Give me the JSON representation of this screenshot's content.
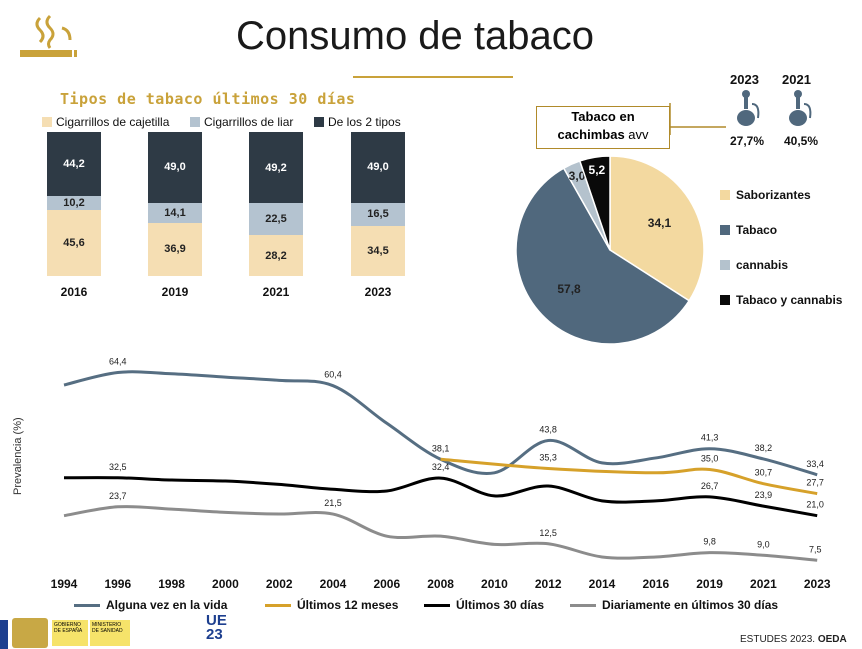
{
  "title": "Consumo de tabaco",
  "subtitle": "Tipos de tabaco últimos 30 días",
  "colors": {
    "gold": "#c9a23a",
    "cajetilla": "#f5deb3",
    "liar": "#b4c3d0",
    "dos": "#2e3a45",
    "alguna": "#566e82",
    "ult12": "#d6a12a",
    "ult30": "#000000",
    "diario": "#8c8c8c",
    "saborizantes": "#f3d9a0",
    "tabaco": "#50687d",
    "cannabis": "#b4c2cd",
    "tabaco_cannabis": "#0a0a0a"
  },
  "chart_data": [
    {
      "type": "bar",
      "title": "Tipos de tabaco últimos 30 días",
      "categories": [
        "2016",
        "2019",
        "2021",
        "2023"
      ],
      "series": [
        {
          "name": "Cigarrillos de cajetilla",
          "values": [
            45.6,
            36.9,
            28.2,
            34.5
          ]
        },
        {
          "name": "Cigarrillos de liar",
          "values": [
            10.2,
            14.1,
            22.5,
            16.5
          ]
        },
        {
          "name": "De los 2 tipos",
          "values": [
            44.2,
            49.0,
            49.2,
            49.0
          ]
        }
      ],
      "labels": {
        "cajetilla": [
          "45,6",
          "36,9",
          "28,2",
          "34,5"
        ],
        "liar": [
          "10,2",
          "14,1",
          "22,5",
          "16,5"
        ],
        "dos": [
          "44,2",
          "49,0",
          "49,2",
          "49,0"
        ]
      },
      "stacked": true
    },
    {
      "type": "pie",
      "title": "Tabaco en cachimbas avv",
      "title_line1": "Tabaco en",
      "title_line2": "cachimbas",
      "title_suffix": "avv",
      "categories": [
        "Saborizantes",
        "Tabaco",
        "cannabis",
        "Tabaco y cannabis"
      ],
      "values": [
        34.1,
        57.8,
        3.0,
        5.2
      ],
      "labels": [
        "34,1",
        "57,8",
        "3,0",
        "5,2"
      ],
      "legend_position": "right"
    },
    {
      "type": "line",
      "ylabel": "Prevalencia (%)",
      "x": [
        "1994",
        "1996",
        "1998",
        "2000",
        "2002",
        "2004",
        "2006",
        "2008",
        "2010",
        "2012",
        "2014",
        "2016",
        "2019",
        "2021",
        "2023"
      ],
      "series": [
        {
          "name": "Alguna vez en la vida",
          "values": [
            60.6,
            64.4,
            64.0,
            63.0,
            62.0,
            60.4,
            49.0,
            38.1,
            34.0,
            43.8,
            37.0,
            38.5,
            41.3,
            38.2,
            33.4
          ]
        },
        {
          "name": "Últimos 12 meses",
          "values": [
            null,
            null,
            null,
            null,
            null,
            null,
            null,
            38.1,
            null,
            35.3,
            null,
            34.0,
            35.0,
            30.7,
            27.7
          ]
        },
        {
          "name": "Últimos 30 días",
          "values": [
            32.5,
            32.5,
            31.8,
            31.5,
            30.5,
            29.0,
            28.5,
            32.4,
            27.0,
            30.0,
            25.5,
            25.5,
            26.7,
            23.9,
            21.0
          ]
        },
        {
          "name": "Diariamente en últimos 30 días",
          "values": [
            21.0,
            23.7,
            23.0,
            22.0,
            21.5,
            21.5,
            14.8,
            14.8,
            12.3,
            12.5,
            8.5,
            8.5,
            9.8,
            9.0,
            7.5
          ]
        }
      ],
      "point_labels": [
        {
          "series": 0,
          "index": 1,
          "text": "64,4"
        },
        {
          "series": 0,
          "index": 5,
          "text": "60,4"
        },
        {
          "series": 0,
          "index": 7,
          "text": "38,1"
        },
        {
          "series": 0,
          "index": 9,
          "text": "43,8"
        },
        {
          "series": 0,
          "index": 12,
          "text": "41,3"
        },
        {
          "series": 0,
          "index": 13,
          "text": "38,2"
        },
        {
          "series": 0,
          "index": 14,
          "text": "33,4"
        },
        {
          "series": 1,
          "index": 9,
          "text": "35,3"
        },
        {
          "series": 1,
          "index": 12,
          "text": "35,0"
        },
        {
          "series": 1,
          "index": 13,
          "text": "30,7"
        },
        {
          "series": 1,
          "index": 14,
          "text": "27,7"
        },
        {
          "series": 2,
          "index": 1,
          "text": "32,5"
        },
        {
          "series": 2,
          "index": 7,
          "text": "32,4"
        },
        {
          "series": 2,
          "index": 12,
          "text": "26,7"
        },
        {
          "series": 2,
          "index": 13,
          "text": "23,9"
        },
        {
          "series": 2,
          "index": 14,
          "text": "21,0"
        },
        {
          "series": 3,
          "index": 1,
          "text": "23,7"
        },
        {
          "series": 3,
          "index": 5,
          "text": "21,5"
        },
        {
          "series": 3,
          "index": 9,
          "text": "12,5"
        },
        {
          "series": 3,
          "index": 12,
          "text": "9,8"
        },
        {
          "series": 3,
          "index": 13,
          "text": "9,0"
        },
        {
          "series": 3,
          "index": 14,
          "text": "7,5"
        }
      ],
      "legend_position": "bottom"
    }
  ],
  "hookah": {
    "year_2023": "2023",
    "year_2021": "2021",
    "val_2023": "27,7%",
    "val_2021": "40,5%"
  },
  "footer": {
    "source": "ESTUDES 2023.",
    "org": "OEDA"
  },
  "logos": {
    "gobierno": "GOBIERNO DE ESPAÑA",
    "ministerio": "MINISTERIO DE SANIDAD",
    "ue": "UE 23"
  }
}
